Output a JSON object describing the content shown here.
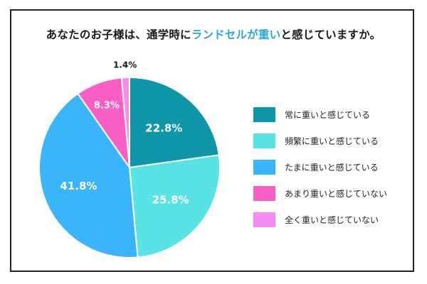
{
  "title": {
    "part1": "あなたのお子様は、通学時に",
    "highlight": "ランドセルが重い",
    "part2": "と感じていますか。"
  },
  "colors": {
    "highlight": "#2aa7d8"
  },
  "chart_data": {
    "type": "pie",
    "legend_position": "right",
    "slices": [
      {
        "label": "常に重いと感じている",
        "value": 22.8,
        "display": "22.8%",
        "color": "#0f96a9"
      },
      {
        "label": "頻繁に重いと感じている",
        "value": 25.8,
        "display": "25.8%",
        "color": "#5ae3e6"
      },
      {
        "label": "たまに重いと感じている",
        "value": 41.8,
        "display": "41.8%",
        "color": "#3ab4fb"
      },
      {
        "label": "あまり重いと感じていない",
        "value": 8.3,
        "display": "8.3%",
        "color": "#f85ec4"
      },
      {
        "label": "全く重いと感じていない",
        "value": 1.4,
        "display": "1.4%",
        "color": "#f58bf3"
      }
    ]
  }
}
